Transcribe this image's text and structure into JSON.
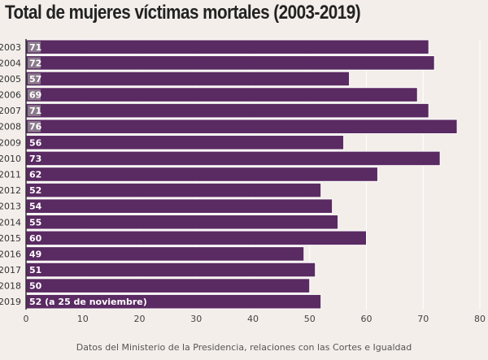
{
  "title": "Total de mujeres víctimas mortales (2003-2019)",
  "footer": "Datos del Ministerio de la Presidencia, relaciones con las Cortes e Igualdad",
  "colors": {
    "bar": "#5a2a62",
    "bar_stroke": "#ffffff",
    "label_badge": "#8a7a8c",
    "grid": "#ffffff",
    "axis": "#333333",
    "background": "#f3eeea"
  },
  "chart_data": {
    "type": "bar",
    "orientation": "horizontal",
    "title": "Total de mujeres víctimas mortales (2003-2019)",
    "xlabel": "",
    "ylabel": "",
    "categories": [
      "2003",
      "2004",
      "2005",
      "2006",
      "2007",
      "2008",
      "2009",
      "2010",
      "2011",
      "2012",
      "2013",
      "2014",
      "2015",
      "2016",
      "2017",
      "2018",
      "2019"
    ],
    "values": [
      71,
      72,
      57,
      69,
      71,
      76,
      56,
      73,
      62,
      52,
      54,
      55,
      60,
      49,
      51,
      50,
      52
    ],
    "data_labels": [
      "71",
      "72",
      "57",
      "69",
      "71",
      "76",
      "56",
      "73",
      "62",
      "52",
      "54",
      "55",
      "60",
      "49",
      "51",
      "50",
      "52 (a 25 de noviembre)"
    ],
    "xlim": [
      0,
      80
    ],
    "x_ticks": [
      0,
      10,
      20,
      30,
      40,
      50,
      60,
      70,
      80
    ],
    "grid": true,
    "legend": false
  }
}
